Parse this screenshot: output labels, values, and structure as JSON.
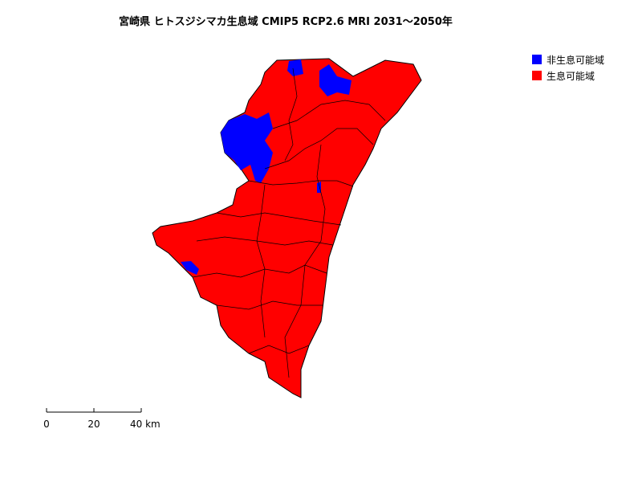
{
  "title": "宮崎県 ヒトスジシマカ生息域 CMIP5 RCP2.6 MRI 2031～2050年",
  "legend": [
    {
      "label": "非生息可能域",
      "color": "#0000ff"
    },
    {
      "label": "生息可能域",
      "color": "#ff0000"
    }
  ],
  "scale_bar": {
    "labels": [
      "0",
      "20",
      "40 km"
    ]
  }
}
